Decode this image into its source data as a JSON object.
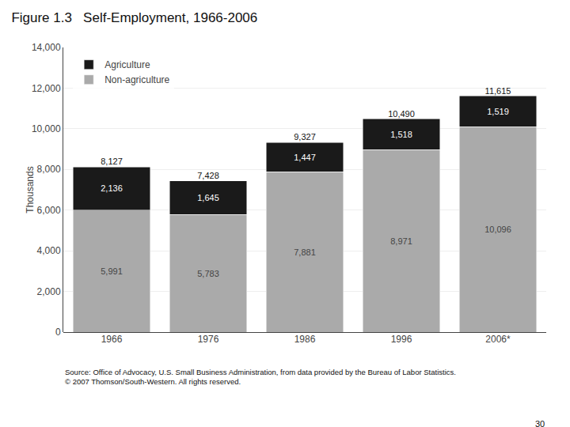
{
  "chart_data": {
    "type": "bar",
    "stacked": true,
    "title": "Figure 1.3   Self-Employment, 1966-2006",
    "ylabel": "Thousands",
    "categories": [
      "1966",
      "1976",
      "1986",
      "1996",
      "2006*"
    ],
    "series": [
      {
        "name": "Non-agriculture",
        "color": "#aaaaaa",
        "values": [
          5991,
          5783,
          7881,
          8971,
          10096
        ],
        "value_labels": [
          "5,991",
          "5,783",
          "7,881",
          "8,971",
          "10,096"
        ]
      },
      {
        "name": "Agriculture",
        "color": "#1a1a1a",
        "values": [
          2136,
          1645,
          1447,
          1518,
          1519
        ],
        "value_labels": [
          "2,136",
          "1,645",
          "1,447",
          "1,518",
          "1,519"
        ]
      }
    ],
    "totals": [
      8127,
      7428,
      9327,
      10490,
      11615
    ],
    "total_labels": [
      "8,127",
      "7,428",
      "9,327",
      "10,490",
      "11,615"
    ],
    "data_labels": true,
    "ylim": [
      0,
      14000
    ],
    "yticks": [
      0,
      {
        "value": 2000,
        "label": "2,000"
      },
      {
        "value": 4000,
        "label": "4,000"
      },
      {
        "value": 6000,
        "label": "6,000"
      },
      {
        "value": 8000,
        "label": "8,000"
      },
      {
        "value": 10000,
        "label": "10,000"
      },
      {
        "value": 12000,
        "label": "12,000"
      },
      {
        "value": 14000,
        "label": "14,000"
      }
    ],
    "grid": true,
    "legend": "upper left",
    "annotations": [
      "Source: Office of Advocacy, U.S. Small Business Administration, from data provided by the Bureau of Labor Statistics.\n© 2007 Thomson/South-Western. All rights reserved.",
      "30"
    ]
  }
}
